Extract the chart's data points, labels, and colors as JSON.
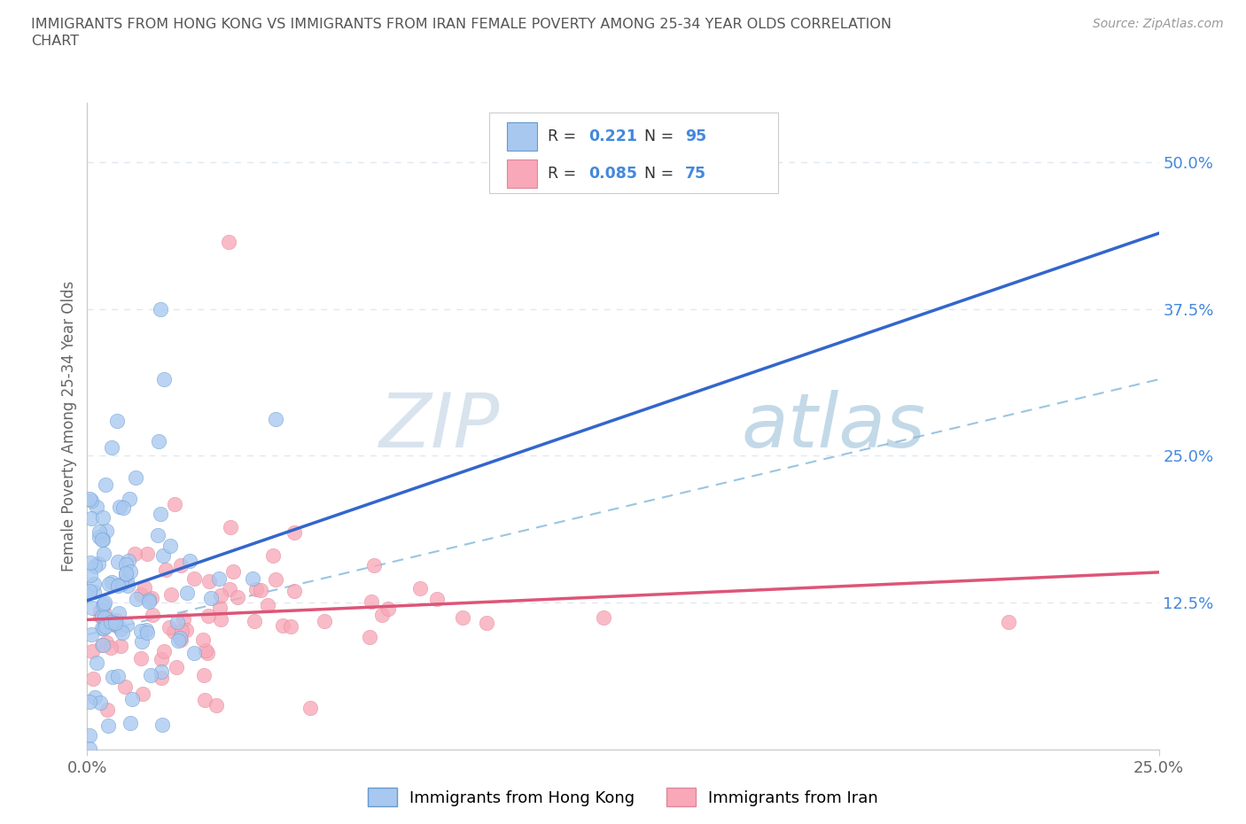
{
  "title_line1": "IMMIGRANTS FROM HONG KONG VS IMMIGRANTS FROM IRAN FEMALE POVERTY AMONG 25-34 YEAR OLDS CORRELATION",
  "title_line2": "CHART",
  "source": "Source: ZipAtlas.com",
  "ylabel": "Female Poverty Among 25-34 Year Olds",
  "xmin": 0.0,
  "xmax": 0.25,
  "ymin": 0.0,
  "ymax": 0.55,
  "hk_color": "#a8c8f0",
  "hk_edge_color": "#6699cc",
  "iran_color": "#f8a8b8",
  "iran_edge_color": "#dd8899",
  "hk_R": 0.221,
  "hk_N": 95,
  "iran_R": 0.085,
  "iran_N": 75,
  "trend_hk_color": "#3366cc",
  "trend_iran_color": "#dd5577",
  "trend_dash_color": "#88bbdd",
  "right_axis_color": "#4488dd",
  "watermark": "ZIPatlas",
  "watermark_color": "#c8d8e8",
  "grid_color": "#e0e8f0",
  "background_color": "#ffffff",
  "ytick_values": [
    0.0,
    0.125,
    0.25,
    0.375,
    0.5
  ],
  "ytick_labels": [
    "",
    "12.5%",
    "25.0%",
    "37.5%",
    "50.0%"
  ],
  "xtick_values": [
    0.0,
    0.25
  ],
  "xtick_labels": [
    "0.0%",
    "25.0%"
  ],
  "legend_R1": "0.221",
  "legend_N1": "95",
  "legend_R2": "0.085",
  "legend_N2": "75"
}
